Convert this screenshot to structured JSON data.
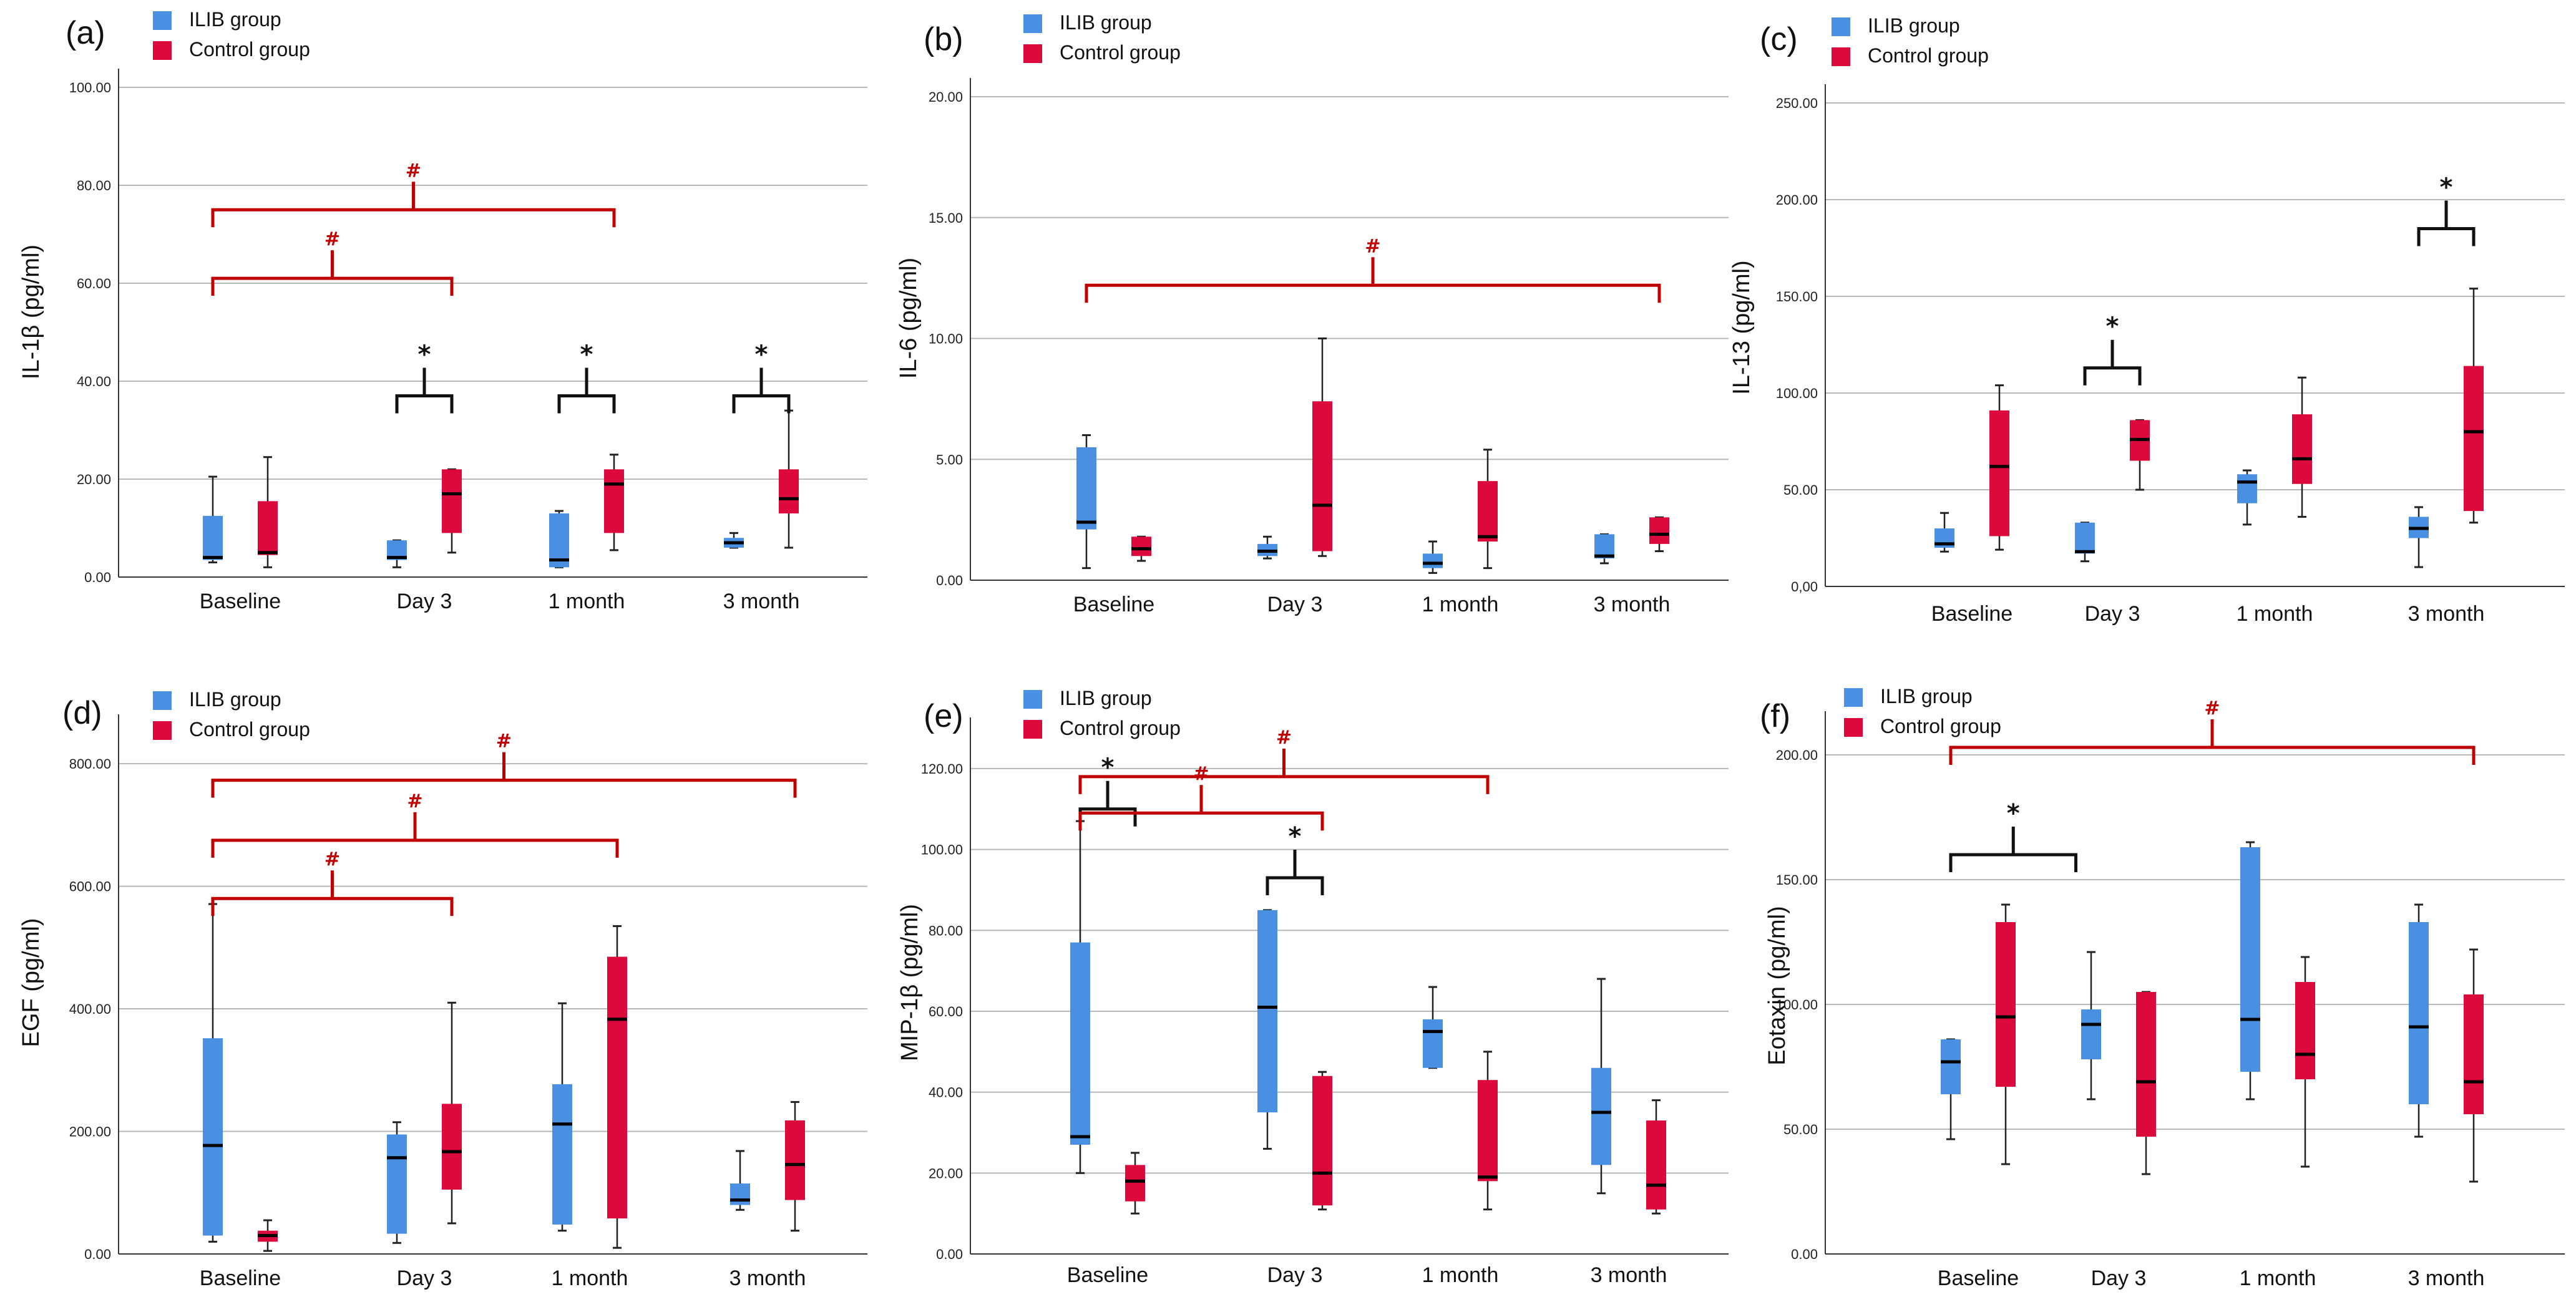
{
  "colors": {
    "ilib": "#4A90E2",
    "control": "#DC0A3C",
    "grid": "#b8b8b8",
    "axis": "#333333",
    "hash": "#C00000",
    "star": "#111111",
    "whisker": "#222222"
  },
  "legend": {
    "ilib": "ILIB group",
    "control": "Control group"
  },
  "chart_data": [
    {
      "type": "boxplot",
      "panel": "(a)",
      "ylabel": "IL-1β (pg/ml)",
      "ylim": [
        0,
        100
      ],
      "yticks": [
        0,
        20,
        40,
        60,
        80,
        100
      ],
      "ytick_labels": [
        "0.00",
        "20.00",
        "40.00",
        "60.00",
        "80.00",
        "100.00"
      ],
      "categories": [
        "Baseline",
        "Day 3",
        "1 month",
        "3 month"
      ],
      "series": [
        {
          "name": "ILIB group",
          "boxes": [
            {
              "min": 3,
              "q1": 3.5,
              "median": 4,
              "q3": 12.5,
              "max": 20.5
            },
            {
              "min": 2,
              "q1": 3.5,
              "median": 4,
              "q3": 7.5,
              "max": 7.5
            },
            {
              "min": 2,
              "q1": 2,
              "median": 3.5,
              "q3": 13,
              "max": 13.5
            },
            {
              "min": 6,
              "q1": 6,
              "median": 7,
              "q3": 8,
              "max": 9
            }
          ]
        },
        {
          "name": "Control group",
          "boxes": [
            {
              "min": 2,
              "q1": 4.5,
              "median": 5,
              "q3": 15.5,
              "max": 24.5
            },
            {
              "min": 5,
              "q1": 9,
              "median": 17,
              "q3": 22,
              "max": 22
            },
            {
              "min": 5.5,
              "q1": 9,
              "median": 19,
              "q3": 22,
              "max": 25
            },
            {
              "min": 6,
              "q1": 13,
              "median": 16,
              "q3": 22,
              "max": 34
            }
          ]
        }
      ],
      "comparisons": [
        {
          "type": "star",
          "label": "*",
          "cats": [
            1,
            1
          ],
          "y": 37
        },
        {
          "type": "star",
          "label": "*",
          "cats": [
            2,
            2
          ],
          "y": 37
        },
        {
          "type": "star",
          "label": "*",
          "cats": [
            3,
            3
          ],
          "y": 37
        },
        {
          "type": "hash",
          "label": "#",
          "cats": [
            0,
            1
          ],
          "y": 61
        },
        {
          "type": "hash",
          "label": "#",
          "cats": [
            0,
            2
          ],
          "y": 75
        }
      ]
    },
    {
      "type": "boxplot",
      "panel": "(b)",
      "ylabel": "IL-6 (pg/ml)",
      "ylim": [
        0,
        20
      ],
      "yticks": [
        0,
        5,
        10,
        15,
        20
      ],
      "ytick_labels": [
        "0.00",
        "5.00",
        "10.00",
        "15.00",
        "20.00"
      ],
      "categories": [
        "Baseline",
        "Day 3",
        "1 month",
        "3 month"
      ],
      "series": [
        {
          "name": "ILIB group",
          "boxes": [
            {
              "min": 0.5,
              "q1": 2.1,
              "median": 2.4,
              "q3": 5.5,
              "max": 6
            },
            {
              "min": 0.9,
              "q1": 1,
              "median": 1.2,
              "q3": 1.5,
              "max": 1.8
            },
            {
              "min": 0.3,
              "q1": 0.5,
              "median": 0.7,
              "q3": 1.1,
              "max": 1.6
            },
            {
              "min": 0.7,
              "q1": 0.9,
              "median": 1,
              "q3": 1.9,
              "max": 1.9
            }
          ]
        },
        {
          "name": "Control group",
          "boxes": [
            {
              "min": 0.8,
              "q1": 1,
              "median": 1.3,
              "q3": 1.8,
              "max": 1.8
            },
            {
              "min": 1,
              "q1": 1.2,
              "median": 3.1,
              "q3": 7.4,
              "max": 10
            },
            {
              "min": 0.5,
              "q1": 1.6,
              "median": 1.8,
              "q3": 4.1,
              "max": 5.4
            },
            {
              "min": 1.2,
              "q1": 1.5,
              "median": 1.9,
              "q3": 2.6,
              "max": 2.6
            }
          ]
        }
      ],
      "comparisons": [
        {
          "type": "hash",
          "label": "#",
          "cats": [
            0,
            3
          ],
          "y": 12.2
        }
      ]
    },
    {
      "type": "boxplot",
      "panel": "(c)",
      "ylabel": "IL-13 (pg/ml)",
      "ylim": [
        0,
        250
      ],
      "yticks": [
        0,
        50,
        100,
        150,
        200,
        250
      ],
      "ytick_labels": [
        "0,00",
        "50.00",
        "100.00",
        "150.00",
        "200.00",
        "250.00"
      ],
      "categories": [
        "Baseline",
        "Day 3",
        "1 month",
        "3 month"
      ],
      "series": [
        {
          "name": "ILIB group",
          "boxes": [
            {
              "min": 18,
              "q1": 20,
              "median": 22,
              "q3": 30,
              "max": 38
            },
            {
              "min": 13,
              "q1": 17,
              "median": 18,
              "q3": 33,
              "max": 33
            },
            {
              "min": 32,
              "q1": 43,
              "median": 54,
              "q3": 58,
              "max": 60
            },
            {
              "min": 10,
              "q1": 25,
              "median": 30,
              "q3": 36,
              "max": 41
            }
          ]
        },
        {
          "name": "Control group",
          "boxes": [
            {
              "min": 19,
              "q1": 26,
              "median": 62,
              "q3": 91,
              "max": 104
            },
            {
              "min": 50,
              "q1": 65,
              "median": 76,
              "q3": 86,
              "max": 86
            },
            {
              "min": 36,
              "q1": 53,
              "median": 66,
              "q3": 89,
              "max": 108
            },
            {
              "min": 33,
              "q1": 39,
              "median": 80,
              "q3": 114,
              "max": 154
            }
          ]
        }
      ],
      "comparisons": [
        {
          "type": "star",
          "label": "*",
          "cats": [
            1,
            1
          ],
          "y": 113
        },
        {
          "type": "star",
          "label": "*",
          "cats": [
            3,
            3
          ],
          "y": 185
        }
      ]
    },
    {
      "type": "boxplot",
      "panel": "(d)",
      "ylabel": "EGF (pg/ml)",
      "ylim": [
        0,
        850
      ],
      "yticks": [
        0,
        200,
        400,
        600,
        800
      ],
      "ytick_labels": [
        "0.00",
        "200.00",
        "400.00",
        "600.00",
        "800.00"
      ],
      "categories": [
        "Baseline",
        "Day 3",
        "1 month",
        "3 month"
      ],
      "series": [
        {
          "name": "ILIB group",
          "boxes": [
            {
              "min": 20,
              "q1": 30,
              "median": 177,
              "q3": 352,
              "max": 571
            },
            {
              "min": 18,
              "q1": 33,
              "median": 157,
              "q3": 195,
              "max": 215
            },
            {
              "min": 38,
              "q1": 48,
              "median": 212,
              "q3": 277,
              "max": 409
            },
            {
              "min": 72,
              "q1": 80,
              "median": 88,
              "q3": 115,
              "max": 168
            }
          ]
        },
        {
          "name": "Control group",
          "boxes": [
            {
              "min": 5,
              "q1": 20,
              "median": 30,
              "q3": 38,
              "max": 55
            },
            {
              "min": 50,
              "q1": 105,
              "median": 167,
              "q3": 245,
              "max": 410
            },
            {
              "min": 10,
              "q1": 58,
              "median": 383,
              "q3": 485,
              "max": 535
            },
            {
              "min": 38,
              "q1": 88,
              "median": 146,
              "q3": 218,
              "max": 248
            }
          ]
        }
      ],
      "comparisons": [
        {
          "type": "hash",
          "label": "#",
          "cats": [
            0,
            1
          ],
          "y": 580
        },
        {
          "type": "hash",
          "label": "#",
          "cats": [
            0,
            2
          ],
          "y": 675
        },
        {
          "type": "hash",
          "label": "#",
          "cats": [
            0,
            3
          ],
          "y": 773
        }
      ]
    },
    {
      "type": "boxplot",
      "panel": "(e)",
      "ylabel": "MIP-1β (pg/ml)",
      "ylim": [
        0,
        128
      ],
      "yticks": [
        0,
        20,
        40,
        60,
        80,
        100,
        120
      ],
      "ytick_labels": [
        "0.00",
        "20.00",
        "40.00",
        "60.00",
        "80.00",
        "100.00",
        "120.00"
      ],
      "categories": [
        "Baseline",
        "Day 3",
        "1 month",
        "3 month"
      ],
      "series": [
        {
          "name": "ILIB group",
          "boxes": [
            {
              "min": 20,
              "q1": 27,
              "median": 29,
              "q3": 77,
              "max": 107
            },
            {
              "min": 26,
              "q1": 35,
              "median": 61,
              "q3": 85,
              "max": 85
            },
            {
              "min": 46,
              "q1": 46,
              "median": 55,
              "q3": 58,
              "max": 66
            },
            {
              "min": 15,
              "q1": 22,
              "median": 35,
              "q3": 46,
              "max": 68
            }
          ]
        },
        {
          "name": "Control group",
          "boxes": [
            {
              "min": 10,
              "q1": 13,
              "median": 18,
              "q3": 22,
              "max": 25
            },
            {
              "min": 11,
              "q1": 12,
              "median": 20,
              "q3": 44,
              "max": 45
            },
            {
              "min": 11,
              "q1": 18,
              "median": 19,
              "q3": 43,
              "max": 50
            },
            {
              "min": 10,
              "q1": 11,
              "median": 17,
              "q3": 33,
              "max": 38
            }
          ]
        }
      ],
      "comparisons": [
        {
          "type": "star",
          "label": "*",
          "cats": [
            0,
            0
          ],
          "y": 110
        },
        {
          "type": "star",
          "label": "*",
          "cats": [
            1,
            1
          ],
          "y": 93
        },
        {
          "type": "hash",
          "label": "#",
          "cats": [
            0,
            1
          ],
          "y": 109
        },
        {
          "type": "hash",
          "label": "#",
          "cats": [
            0,
            2
          ],
          "y": 118
        }
      ]
    },
    {
      "type": "boxplot",
      "panel": "(f)",
      "ylabel": "Eotaxin (pg/ml)",
      "ylim": [
        0,
        210
      ],
      "yticks": [
        0,
        50,
        100,
        150,
        200
      ],
      "ytick_labels": [
        "0.00",
        "50.00",
        "100.00",
        "150.00",
        "200.00"
      ],
      "categories": [
        "Baseline",
        "Day 3",
        "1 month",
        "3 month"
      ],
      "series": [
        {
          "name": "ILIB group",
          "boxes": [
            {
              "min": 46,
              "q1": 64,
              "median": 77,
              "q3": 86,
              "max": 86
            },
            {
              "min": 62,
              "q1": 78,
              "median": 92,
              "q3": 98,
              "max": 121
            },
            {
              "min": 62,
              "q1": 73,
              "median": 94,
              "q3": 163,
              "max": 165
            },
            {
              "min": 47,
              "q1": 60,
              "median": 91,
              "q3": 133,
              "max": 140
            }
          ]
        },
        {
          "name": "Control group",
          "boxes": [
            {
              "min": 36,
              "q1": 67,
              "median": 95,
              "q3": 133,
              "max": 140
            },
            {
              "min": 32,
              "q1": 47,
              "median": 69,
              "q3": 105,
              "max": 105
            },
            {
              "min": 35,
              "q1": 70,
              "median": 80,
              "q3": 109,
              "max": 119
            },
            {
              "min": 29,
              "q1": 56,
              "median": 69,
              "q3": 104,
              "max": 122
            }
          ]
        }
      ],
      "comparisons": [
        {
          "type": "star",
          "label": "*",
          "cats": [
            0,
            0.5
          ],
          "y": 160
        },
        {
          "type": "hash",
          "label": "#",
          "cats": [
            0,
            3
          ],
          "y": 203
        }
      ]
    }
  ]
}
